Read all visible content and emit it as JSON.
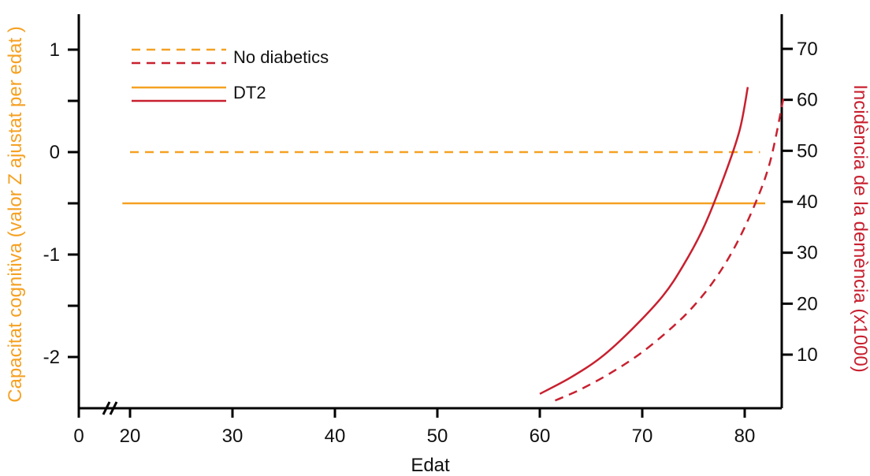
{
  "colors": {
    "cognitive": "#F5A123",
    "dementia": "#C8202F",
    "axis": "#000000"
  },
  "chart_data": {
    "type": "line",
    "xlabel": "Edat",
    "ylabel_left": "Capacitat cognitiva (valor Z ajustat per edat )",
    "ylabel_right": "Incidència de la demència (x1000)",
    "x_ticks": [
      0,
      20,
      30,
      40,
      50,
      60,
      70,
      80
    ],
    "x_axis_break": true,
    "xlim": [
      0,
      84
    ],
    "y_left_ticks": [
      1,
      0,
      -1,
      -2
    ],
    "y_left_minor_ticks": [
      0.5,
      -0.5,
      -1.5
    ],
    "ylim_left": [
      -2.5,
      1.3
    ],
    "y_right_ticks": [
      70,
      60,
      50,
      40,
      30,
      20,
      10
    ],
    "ylim_right": [
      0,
      75
    ],
    "legend": [
      {
        "label": "No diabetics",
        "style": "dashed"
      },
      {
        "label": "DT2",
        "style": "solid"
      }
    ],
    "series": [
      {
        "name": "No diabetics",
        "axis": "left",
        "metric": "cognitive",
        "style": "dashed",
        "x": [
          20,
          81.5
        ],
        "y": [
          0,
          0
        ]
      },
      {
        "name": "DT2",
        "axis": "left",
        "metric": "cognitive",
        "style": "solid",
        "x": [
          17,
          82
        ],
        "y": [
          -0.5,
          -0.5
        ]
      },
      {
        "name": "No diabetics",
        "axis": "right",
        "metric": "dementia",
        "style": "dashed",
        "x": [
          61.5,
          64,
          67,
          70,
          73,
          75,
          77,
          79,
          81,
          82.5,
          83.8
        ],
        "y": [
          1,
          3.2,
          6.5,
          10.5,
          15.5,
          19.5,
          24.5,
          31,
          39.5,
          48,
          60.5
        ]
      },
      {
        "name": "DT2",
        "axis": "right",
        "metric": "dementia",
        "style": "solid",
        "x": [
          60,
          63,
          66,
          69,
          72,
          74,
          76,
          78,
          79.5,
          80.3
        ],
        "y": [
          2.3,
          5.5,
          9.5,
          15,
          21.5,
          27.5,
          35,
          45,
          54,
          62.5
        ]
      }
    ]
  }
}
